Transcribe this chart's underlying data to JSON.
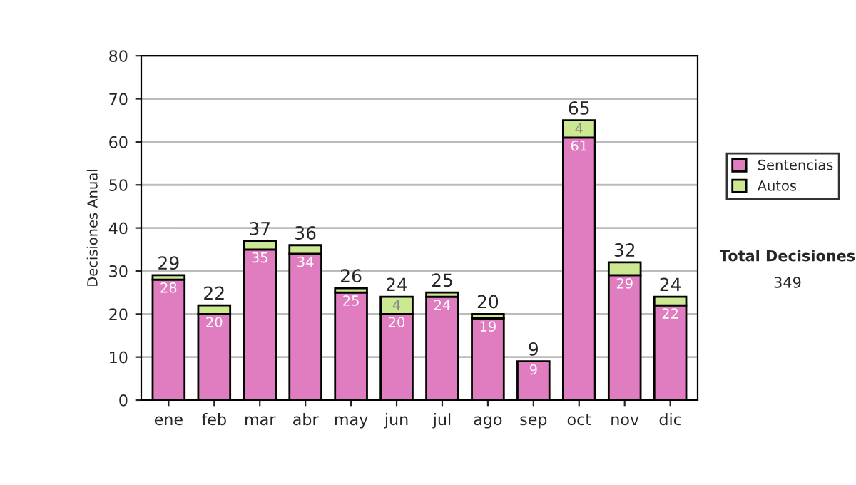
{
  "chart_data": {
    "type": "bar",
    "stacked": true,
    "ylabel": "Decisiones Anual",
    "categories": [
      "ene",
      "feb",
      "mar",
      "abr",
      "may",
      "jun",
      "jul",
      "ago",
      "sep",
      "oct",
      "nov",
      "dic"
    ],
    "series": [
      {
        "name": "Sentencias",
        "color": "#e07cc0",
        "values": [
          28,
          20,
          35,
          34,
          25,
          20,
          24,
          19,
          9,
          61,
          29,
          22
        ],
        "value_labels": [
          "28",
          "20",
          "35",
          "34",
          "25",
          "20",
          "24",
          "19",
          "9",
          "61",
          "29",
          "22"
        ]
      },
      {
        "name": "Autos",
        "color": "#cce890",
        "values": [
          1,
          2,
          2,
          2,
          1,
          4,
          1,
          1,
          0,
          4,
          3,
          2
        ],
        "value_labels": [
          null,
          null,
          null,
          null,
          null,
          "4",
          null,
          null,
          null,
          "4",
          null,
          null
        ]
      }
    ],
    "totals": [
      "29",
      "22",
      "37",
      "36",
      "26",
      "24",
      "25",
      "20",
      "9",
      "65",
      "32",
      "24"
    ],
    "ylim": [
      0,
      80
    ],
    "yticks": [
      0,
      10,
      20,
      30,
      40,
      50,
      60,
      70,
      80
    ],
    "grid": "y",
    "legend": "right",
    "annotations": [
      "Total Decisiones",
      "349"
    ]
  }
}
